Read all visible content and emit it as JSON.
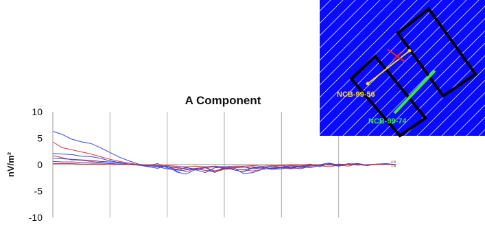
{
  "chart_data": {
    "type": "line",
    "title": "A Component",
    "ylabel": "nV/m²",
    "xlabel": "",
    "ylim": [
      -10,
      10
    ],
    "yticks": [
      10,
      5,
      0,
      -5,
      -10
    ],
    "grid": true,
    "end_labels": [
      "4.8",
      "1.4"
    ],
    "x": [
      0,
      0.5,
      1,
      1.5,
      2,
      2.5,
      3,
      3.5,
      4,
      4.5,
      5,
      5.5,
      6,
      6.5,
      7,
      7.5,
      8,
      8.5,
      9,
      9.5,
      10,
      10.5,
      11,
      11.5,
      12,
      12.5,
      13,
      13.5,
      14,
      14.5,
      15,
      15.5,
      16,
      16.5,
      17,
      17.5,
      18
    ],
    "series": [
      {
        "color": "#3344dd",
        "values": [
          6.3,
          5.7,
          4.8,
          4.3,
          4.0,
          3.2,
          2.3,
          1.4,
          0.7,
          0.1,
          -0.2,
          0.2,
          -0.6,
          -1.2,
          -1.0,
          -0.7,
          -1.1,
          -1.2,
          -0.7,
          -0.8,
          -1.0,
          -0.6,
          -0.7,
          -0.9,
          -0.8,
          -0.5,
          -0.8,
          -0.3,
          0.0,
          0.3,
          -0.1,
          0.0,
          0.2,
          -0.1,
          0.1,
          0.2,
          0.0
        ]
      },
      {
        "color": "#dd3333",
        "values": [
          4.3,
          3.2,
          2.8,
          2.4,
          2.0,
          1.5,
          1.0,
          0.6,
          0.3,
          0.0,
          -0.3,
          -0.2,
          -0.4,
          -0.9,
          -0.6,
          -0.8,
          -1.1,
          -1.4,
          -0.9,
          -0.8,
          -1.0,
          -1.2,
          -0.9,
          -0.7,
          -0.6,
          -0.8,
          -0.6,
          -0.3,
          -0.2,
          -0.4,
          -0.1,
          -0.3,
          0.2,
          -0.1,
          0.0,
          0.1,
          0.0
        ]
      },
      {
        "color": "#3344dd",
        "values": [
          2.1,
          2.0,
          1.9,
          1.6,
          1.5,
          1.2,
          0.7,
          0.4,
          0.1,
          -0.1,
          -0.4,
          -0.7,
          -0.2,
          -1.4,
          -1.8,
          -0.9,
          -0.6,
          -1.5,
          -0.4,
          -0.6,
          -1.7,
          -1.5,
          -0.9,
          -0.6,
          -0.5,
          -0.7,
          -0.3,
          0.1,
          -0.4,
          0.2,
          -0.3,
          0.2,
          0.0,
          -0.2,
          0.1,
          0.0,
          0.0
        ]
      },
      {
        "color": "#dd3333",
        "values": [
          1.7,
          1.3,
          0.9,
          0.8,
          0.6,
          0.4,
          0.2,
          0.1,
          0.0,
          -0.1,
          -0.1,
          -0.3,
          -0.4,
          -0.6,
          -1.4,
          -0.7,
          -0.5,
          -1.2,
          -0.9,
          -0.6,
          -0.5,
          -0.4,
          -0.7,
          -0.3,
          -0.5,
          -0.2,
          -0.3,
          -0.1,
          0.0,
          -0.1,
          0.0,
          0.1,
          -0.1,
          0.0,
          0.1,
          0.0,
          0.0
        ]
      },
      {
        "color": "#3344dd",
        "values": [
          1.2,
          1.1,
          1.0,
          0.9,
          0.8,
          0.6,
          0.5,
          0.3,
          0.1,
          0.0,
          -0.2,
          -0.4,
          -0.8,
          -1.0,
          -0.5,
          -1.0,
          -1.5,
          -0.6,
          -0.5,
          -1.0,
          -1.4,
          -0.6,
          -0.4,
          -0.8,
          -0.6,
          -0.4,
          -0.3,
          -0.6,
          -0.2,
          0.0,
          -0.3,
          0.1,
          0.2,
          -0.1,
          0.0,
          0.1,
          -0.1
        ]
      },
      {
        "color": "#3344dd",
        "values": [
          0.6,
          0.5,
          0.5,
          0.4,
          0.3,
          0.3,
          0.2,
          0.1,
          0.0,
          -0.1,
          -0.2,
          -0.3,
          -0.4,
          -0.5,
          -0.8,
          -1.0,
          -0.6,
          -0.4,
          -0.7,
          -0.5,
          -0.4,
          -0.8,
          -0.6,
          -0.3,
          -0.2,
          -0.5,
          -0.4,
          -0.2,
          0.0,
          -0.1,
          0.1,
          0.0,
          -0.1,
          0.0,
          0.0,
          0.1,
          0.0
        ]
      },
      {
        "color": "#dd3333",
        "values": [
          0.2,
          0.2,
          0.2,
          0.1,
          0.1,
          0.1,
          0.0,
          0.0,
          0.0,
          0.0,
          -0.1,
          -0.2,
          -0.2,
          -0.3,
          -0.4,
          -0.3,
          -0.4,
          -0.3,
          -0.4,
          -0.3,
          -0.3,
          -0.2,
          -0.3,
          -0.2,
          -0.2,
          -0.1,
          -0.1,
          -0.2,
          0.0,
          0.0,
          -0.1,
          0.0,
          0.0,
          0.0,
          0.0,
          0.0,
          0.0
        ]
      }
    ]
  },
  "inset_map": {
    "labels": [
      {
        "text": "NCB-99-56",
        "color": "#ffdd00"
      },
      {
        "text": "NCB-99-74",
        "color": "#33ee33"
      }
    ],
    "background_color": "#0a0aff"
  }
}
